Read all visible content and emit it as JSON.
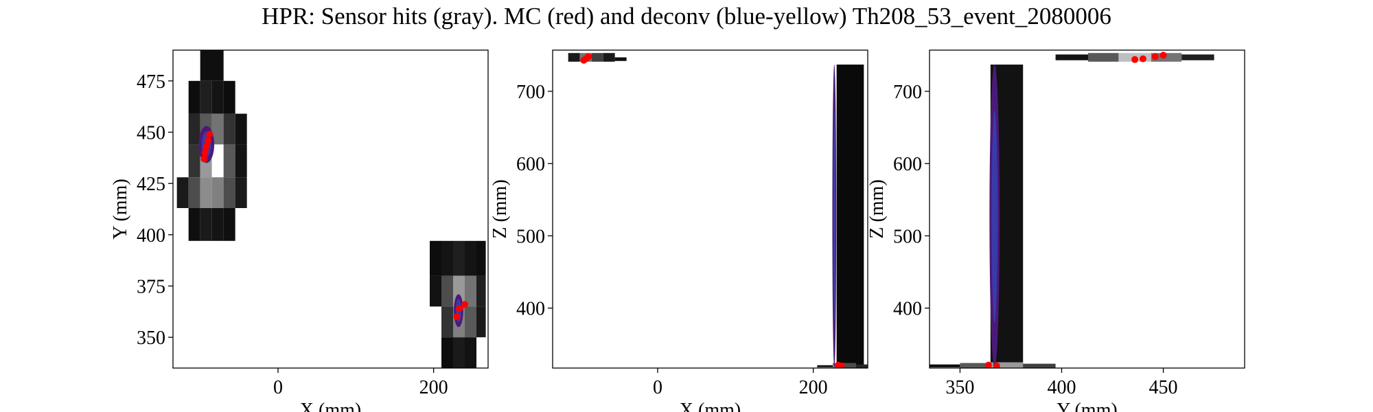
{
  "figure": {
    "title": "HPR: Sensor hits (gray). MC (red) and deconv (blue-yellow) Th208_53_event_2080006"
  },
  "colors": {
    "mc": "#ff0000",
    "deconv_outer": "#4b1a78",
    "deconv_inner": "#3b3aa8",
    "axis": "#000000",
    "background": "#ffffff"
  },
  "chart_data": [
    {
      "type": "heatmap",
      "panel": "xy",
      "xlabel": "X (mm)",
      "ylabel": "Y (mm)",
      "xlim": [
        -135,
        270
      ],
      "ylim": [
        335,
        490
      ],
      "xticks": [
        0,
        200
      ],
      "yticks": [
        350,
        375,
        400,
        425,
        450,
        475
      ],
      "sensor_hits": [
        {
          "x0": -100,
          "x1": -70,
          "y0": 475,
          "y1": 490,
          "level": 0.06
        },
        {
          "x0": -115,
          "x1": -100,
          "y0": 459,
          "y1": 475,
          "level": 0.05
        },
        {
          "x0": -100,
          "x1": -85,
          "y0": 459,
          "y1": 475,
          "level": 0.12
        },
        {
          "x0": -85,
          "x1": -70,
          "y0": 459,
          "y1": 475,
          "level": 0.08
        },
        {
          "x0": -70,
          "x1": -55,
          "y0": 459,
          "y1": 475,
          "level": 0.05
        },
        {
          "x0": -115,
          "x1": -100,
          "y0": 444,
          "y1": 459,
          "level": 0.15
        },
        {
          "x0": -100,
          "x1": -85,
          "y0": 444,
          "y1": 459,
          "level": 0.35
        },
        {
          "x0": -85,
          "x1": -70,
          "y0": 444,
          "y1": 459,
          "level": 0.45
        },
        {
          "x0": -70,
          "x1": -55,
          "y0": 444,
          "y1": 459,
          "level": 0.2
        },
        {
          "x0": -55,
          "x1": -40,
          "y0": 444,
          "y1": 459,
          "level": 0.07
        },
        {
          "x0": -115,
          "x1": -100,
          "y0": 428,
          "y1": 444,
          "level": 0.2
        },
        {
          "x0": -100,
          "x1": -85,
          "y0": 428,
          "y1": 444,
          "level": 0.6
        },
        {
          "x0": -85,
          "x1": -70,
          "y0": 428,
          "y1": 444,
          "level": 1.0
        },
        {
          "x0": -70,
          "x1": -55,
          "y0": 428,
          "y1": 444,
          "level": 0.35
        },
        {
          "x0": -55,
          "x1": -40,
          "y0": 428,
          "y1": 444,
          "level": 0.08
        },
        {
          "x0": -130,
          "x1": -115,
          "y0": 413,
          "y1": 428,
          "level": 0.1
        },
        {
          "x0": -115,
          "x1": -100,
          "y0": 413,
          "y1": 428,
          "level": 0.3
        },
        {
          "x0": -100,
          "x1": -85,
          "y0": 413,
          "y1": 428,
          "level": 0.55
        },
        {
          "x0": -85,
          "x1": -70,
          "y0": 413,
          "y1": 428,
          "level": 0.5
        },
        {
          "x0": -70,
          "x1": -55,
          "y0": 413,
          "y1": 428,
          "level": 0.3
        },
        {
          "x0": -55,
          "x1": -40,
          "y0": 413,
          "y1": 428,
          "level": 0.1
        },
        {
          "x0": -115,
          "x1": -100,
          "y0": 397,
          "y1": 413,
          "level": 0.06
        },
        {
          "x0": -100,
          "x1": -85,
          "y0": 397,
          "y1": 413,
          "level": 0.1
        },
        {
          "x0": -85,
          "x1": -70,
          "y0": 397,
          "y1": 413,
          "level": 0.08
        },
        {
          "x0": -70,
          "x1": -55,
          "y0": 397,
          "y1": 413,
          "level": 0.06
        },
        {
          "x0": 195,
          "x1": 210,
          "y0": 380,
          "y1": 397,
          "level": 0.05
        },
        {
          "x0": 210,
          "x1": 225,
          "y0": 380,
          "y1": 397,
          "level": 0.08
        },
        {
          "x0": 225,
          "x1": 240,
          "y0": 380,
          "y1": 397,
          "level": 0.12
        },
        {
          "x0": 240,
          "x1": 255,
          "y0": 380,
          "y1": 397,
          "level": 0.08
        },
        {
          "x0": 255,
          "x1": 267,
          "y0": 380,
          "y1": 397,
          "level": 0.05
        },
        {
          "x0": 195,
          "x1": 210,
          "y0": 365,
          "y1": 380,
          "level": 0.07
        },
        {
          "x0": 210,
          "x1": 225,
          "y0": 365,
          "y1": 380,
          "level": 0.3
        },
        {
          "x0": 225,
          "x1": 240,
          "y0": 365,
          "y1": 380,
          "level": 0.6
        },
        {
          "x0": 240,
          "x1": 255,
          "y0": 365,
          "y1": 380,
          "level": 0.45
        },
        {
          "x0": 255,
          "x1": 267,
          "y0": 365,
          "y1": 380,
          "level": 0.12
        },
        {
          "x0": 210,
          "x1": 225,
          "y0": 350,
          "y1": 365,
          "level": 0.2
        },
        {
          "x0": 225,
          "x1": 240,
          "y0": 350,
          "y1": 365,
          "level": 0.5
        },
        {
          "x0": 240,
          "x1": 255,
          "y0": 350,
          "y1": 365,
          "level": 0.35
        },
        {
          "x0": 255,
          "x1": 267,
          "y0": 350,
          "y1": 365,
          "level": 0.1
        },
        {
          "x0": 210,
          "x1": 225,
          "y0": 335,
          "y1": 350,
          "level": 0.05
        },
        {
          "x0": 225,
          "x1": 240,
          "y0": 335,
          "y1": 350,
          "level": 0.1
        },
        {
          "x0": 240,
          "x1": 255,
          "y0": 335,
          "y1": 350,
          "level": 0.07
        }
      ],
      "deconv_blobs": [
        {
          "cx": -92,
          "cy": 444,
          "rx": 10,
          "ry": 9
        },
        {
          "cx": 232,
          "cy": 363,
          "rx": 6,
          "ry": 8
        }
      ],
      "mc_points": [
        {
          "x": -94,
          "y": 440
        },
        {
          "x": -92,
          "y": 443
        },
        {
          "x": -90,
          "y": 446
        },
        {
          "x": -88,
          "y": 449
        },
        {
          "x": -95,
          "y": 437
        },
        {
          "x": 233,
          "y": 364
        },
        {
          "x": 230,
          "y": 360
        },
        {
          "x": 240,
          "y": 366
        }
      ]
    },
    {
      "type": "heatmap",
      "panel": "xz",
      "xlabel": "X (mm)",
      "ylabel": "Z (mm)",
      "xlim": [
        -135,
        270
      ],
      "ylim": [
        317,
        757
      ],
      "xticks": [
        0,
        200
      ],
      "yticks": [
        400,
        500,
        600,
        700
      ],
      "sensor_hits": [
        {
          "x0": -115,
          "x1": -100,
          "y0": 741,
          "y1": 753,
          "level": 0.1
        },
        {
          "x0": -100,
          "x1": -85,
          "y0": 741,
          "y1": 753,
          "level": 0.45
        },
        {
          "x0": -85,
          "x1": -70,
          "y0": 741,
          "y1": 753,
          "level": 0.25
        },
        {
          "x0": -70,
          "x1": -55,
          "y0": 741,
          "y1": 753,
          "level": 0.1
        },
        {
          "x0": -55,
          "x1": -40,
          "y0": 742,
          "y1": 747,
          "level": 0.06
        },
        {
          "x0": 230,
          "x1": 265,
          "y0": 317,
          "y1": 737,
          "level": 0.04
        },
        {
          "x0": 205,
          "x1": 225,
          "y0": 318,
          "y1": 321,
          "level": 0.1
        },
        {
          "x0": 225,
          "x1": 240,
          "y0": 317,
          "y1": 324,
          "level": 0.5
        },
        {
          "x0": 240,
          "x1": 255,
          "y0": 317,
          "y1": 324,
          "level": 0.3
        },
        {
          "x0": 255,
          "x1": 270,
          "y0": 317,
          "y1": 322,
          "level": 0.15
        }
      ],
      "deconv_blobs": [
        {
          "cx": 227,
          "cy": 527,
          "rx": 2.5,
          "ry": 210
        }
      ],
      "mc_points": [
        {
          "x": -92,
          "y": 745
        },
        {
          "x": -89,
          "y": 748
        },
        {
          "x": -95,
          "y": 743
        },
        {
          "x": 232,
          "y": 321
        },
        {
          "x": 236,
          "y": 320
        }
      ]
    },
    {
      "type": "heatmap",
      "panel": "yz",
      "xlabel": "Y (mm)",
      "ylabel": "Z (mm)",
      "xlim": [
        335,
        490
      ],
      "ylim": [
        317,
        757
      ],
      "xticks": [
        350,
        400,
        450
      ],
      "yticks": [
        400,
        500,
        600,
        700
      ],
      "sensor_hits": [
        {
          "x0": 365,
          "x1": 381,
          "y0": 317,
          "y1": 737,
          "level": 0.07
        },
        {
          "x0": 335,
          "x1": 350,
          "y0": 318,
          "y1": 322,
          "level": 0.05
        },
        {
          "x0": 350,
          "x1": 365,
          "y0": 317,
          "y1": 324,
          "level": 0.35
        },
        {
          "x0": 365,
          "x1": 381,
          "y0": 317,
          "y1": 325,
          "level": 0.6
        },
        {
          "x0": 381,
          "x1": 397,
          "y0": 317,
          "y1": 323,
          "level": 0.25
        },
        {
          "x0": 397,
          "x1": 413,
          "y0": 743,
          "y1": 751,
          "level": 0.08
        },
        {
          "x0": 413,
          "x1": 428,
          "y0": 741,
          "y1": 753,
          "level": 0.35
        },
        {
          "x0": 428,
          "x1": 444,
          "y0": 741,
          "y1": 753,
          "level": 0.75
        },
        {
          "x0": 444,
          "x1": 459,
          "y0": 741,
          "y1": 753,
          "level": 0.45
        },
        {
          "x0": 459,
          "x1": 475,
          "y0": 743,
          "y1": 751,
          "level": 0.12
        }
      ],
      "deconv_blobs": [
        {
          "cx": 367,
          "cy": 527,
          "rx": 2.5,
          "ry": 210
        }
      ],
      "mc_points": [
        {
          "x": 440,
          "y": 745
        },
        {
          "x": 446,
          "y": 748
        },
        {
          "x": 450,
          "y": 750
        },
        {
          "x": 436,
          "y": 744
        },
        {
          "x": 364,
          "y": 321
        },
        {
          "x": 368,
          "y": 320
        }
      ]
    }
  ]
}
